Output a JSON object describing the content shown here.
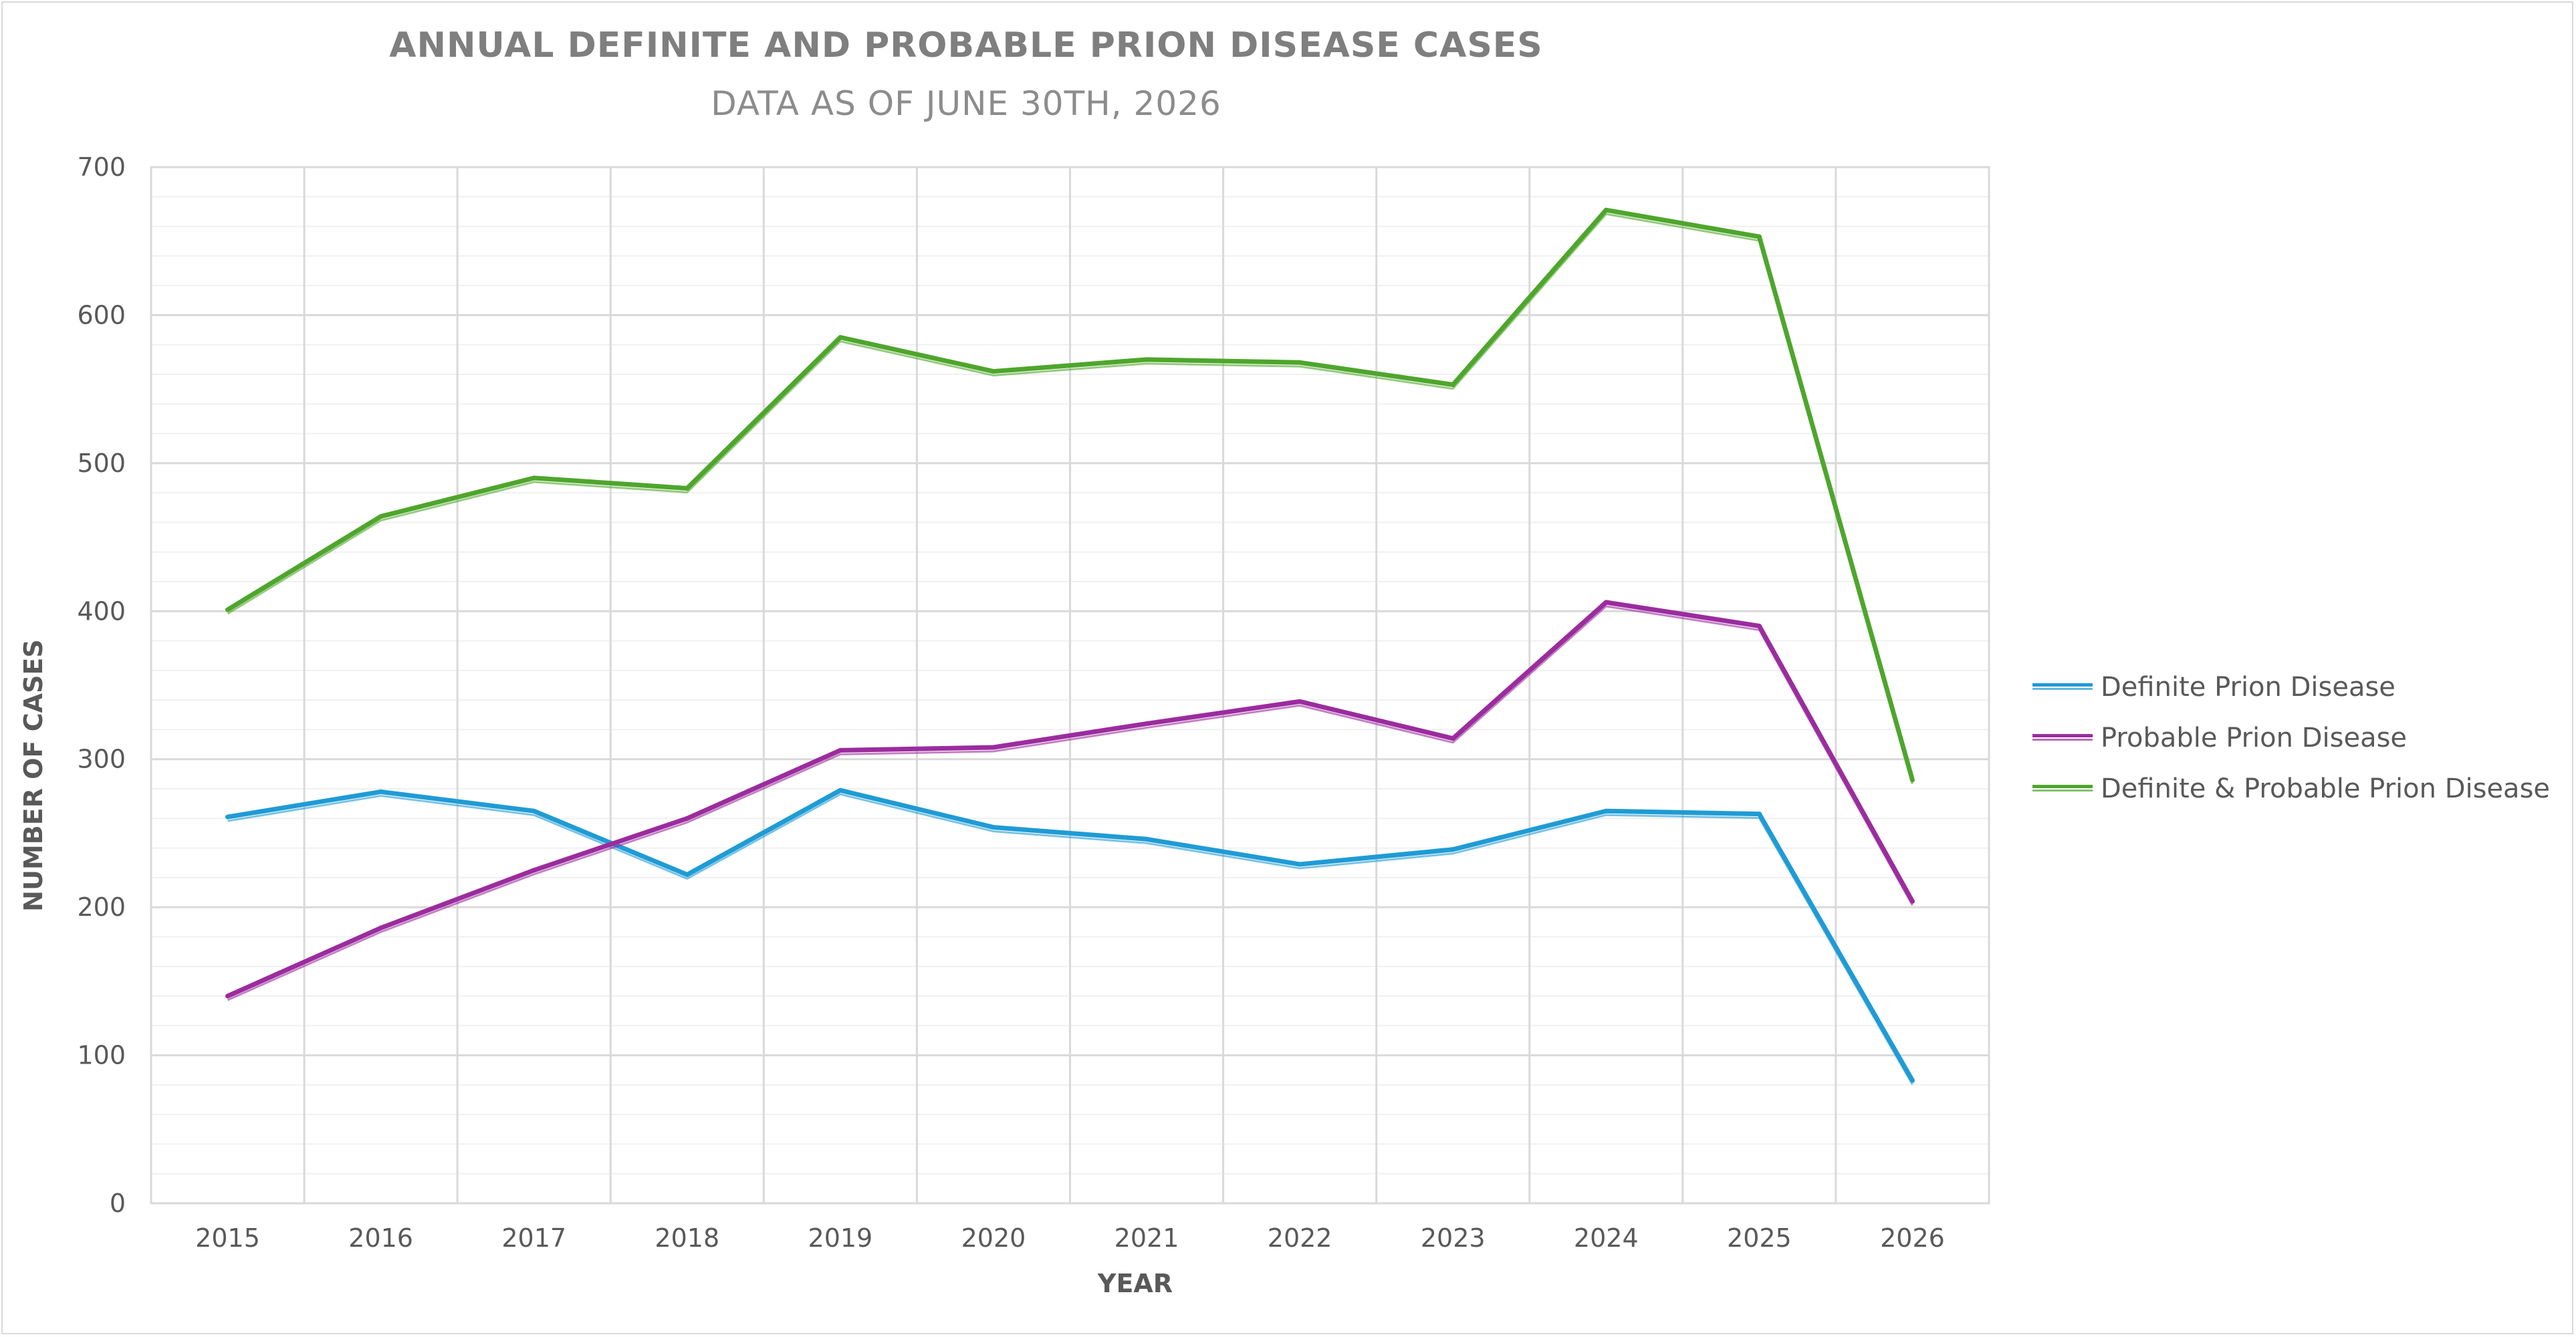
{
  "chart_data": {
    "type": "line",
    "title": "ANNUAL DEFINITE AND PROBABLE PRION DISEASE CASES",
    "subtitle": "DATA AS OF JUNE 30TH, 2026",
    "xlabel": "YEAR",
    "ylabel": "NUMBER OF CASES",
    "categories": [
      "2015",
      "2016",
      "2017",
      "2018",
      "2019",
      "2020",
      "2021",
      "2022",
      "2023",
      "2024",
      "2025",
      "2026"
    ],
    "ylim": [
      0,
      700
    ],
    "yticks": [
      0,
      100,
      200,
      300,
      400,
      500,
      600,
      700
    ],
    "ytick_labels": [
      "0",
      "100",
      "200",
      "300",
      "400",
      "500",
      "600",
      "700"
    ],
    "grid": true,
    "legend_position": "right",
    "series": [
      {
        "name": "Definite Prion Disease",
        "color": "#1f9bd5",
        "values": [
          261,
          278,
          265,
          222,
          279,
          254,
          246,
          229,
          239,
          265,
          263,
          83
        ]
      },
      {
        "name": "Probable Prion Disease",
        "color": "#9b2c9e",
        "values": [
          140,
          186,
          225,
          260,
          306,
          308,
          324,
          339,
          314,
          406,
          390,
          204
        ]
      },
      {
        "name": "Definite & Probable Prion Disease",
        "color": "#4ea62c",
        "values": [
          401,
          464,
          490,
          483,
          585,
          562,
          570,
          568,
          553,
          671,
          653,
          286
        ]
      }
    ]
  }
}
